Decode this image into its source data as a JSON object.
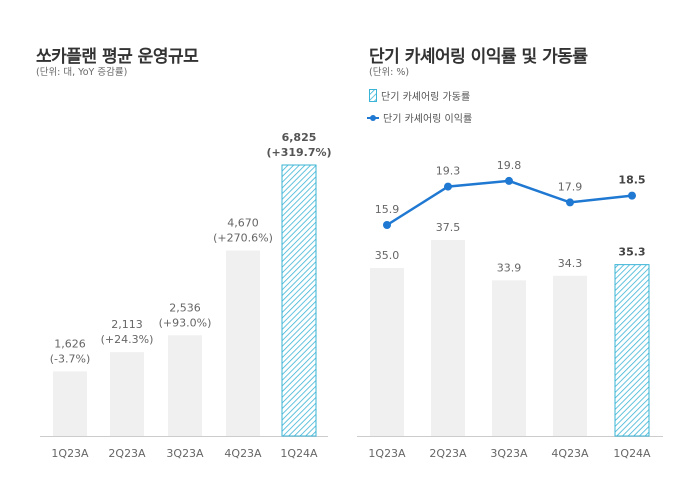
{
  "chart_data": [
    {
      "type": "bar",
      "title": "쏘카플랜 평균 운영규모",
      "subtitle": "(단위: 대, YoY 증감률)",
      "categories": [
        "1Q23A",
        "2Q23A",
        "3Q23A",
        "4Q23A",
        "1Q24A"
      ],
      "values": [
        1626,
        2113,
        2536,
        4670,
        6825
      ],
      "value_labels": [
        "1,626",
        "2,113",
        "2,536",
        "4,670",
        "6,825"
      ],
      "yoy_labels": [
        "(-3.7%)",
        "(+24.3%)",
        "(+93.0%)",
        "(+270.6%)",
        "(+319.7%)"
      ],
      "ylim": [
        0,
        6825
      ],
      "grid": false,
      "highlight_index": 4
    },
    {
      "type": "bar+line",
      "title": "단기 카셰어링 이익률 및 가동률",
      "subtitle": "(단위: %)",
      "categories": [
        "1Q23A",
        "2Q23A",
        "3Q23A",
        "4Q23A",
        "1Q24A"
      ],
      "series": [
        {
          "name": "단기 카셰어링 가동률",
          "type": "bar",
          "values": [
            35.0,
            37.5,
            33.9,
            34.3,
            35.3
          ],
          "labels": [
            "35.0",
            "37.5",
            "33.9",
            "34.3",
            "35.3"
          ]
        },
        {
          "name": "단기 카셰어링 이익률",
          "type": "line",
          "values": [
            15.9,
            19.3,
            19.8,
            17.9,
            18.5
          ],
          "labels": [
            "15.9",
            "19.3",
            "19.8",
            "17.9",
            "18.5"
          ]
        }
      ],
      "legend": "top-left",
      "grid": false,
      "highlight_index": 4
    }
  ],
  "colors": {
    "bar": "#f0f0f0",
    "highlight": "#3ab4d6",
    "line": "#1f78d1",
    "text": "#666666",
    "axis": "#cccccc"
  }
}
